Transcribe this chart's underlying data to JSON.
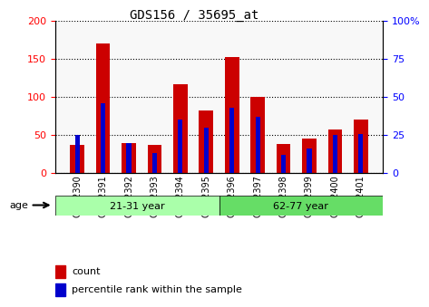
{
  "title": "GDS156 / 35695_at",
  "samples": [
    "GSM2390",
    "GSM2391",
    "GSM2392",
    "GSM2393",
    "GSM2394",
    "GSM2395",
    "GSM2396",
    "GSM2397",
    "GSM2398",
    "GSM2399",
    "GSM2400",
    "GSM2401"
  ],
  "counts": [
    37,
    170,
    40,
    37,
    117,
    82,
    153,
    100,
    38,
    45,
    58,
    70
  ],
  "percentiles": [
    25,
    46,
    20,
    13,
    35,
    30,
    43,
    37,
    12,
    16,
    25,
    26
  ],
  "groups": [
    {
      "label": "21-31 year",
      "start": 0,
      "end": 6,
      "color": "#aaffaa"
    },
    {
      "label": "62-77 year",
      "start": 6,
      "end": 12,
      "color": "#66dd66"
    }
  ],
  "ylim_left": [
    0,
    200
  ],
  "ylim_right": [
    0,
    100
  ],
  "yticks_left": [
    0,
    50,
    100,
    150,
    200
  ],
  "yticks_right": [
    0,
    25,
    50,
    75,
    100
  ],
  "bar_color": "#cc0000",
  "percentile_color": "#0000cc",
  "background_color": "#ffffff",
  "age_label": "age",
  "legend_count": "count",
  "legend_percentile": "percentile rank within the sample"
}
